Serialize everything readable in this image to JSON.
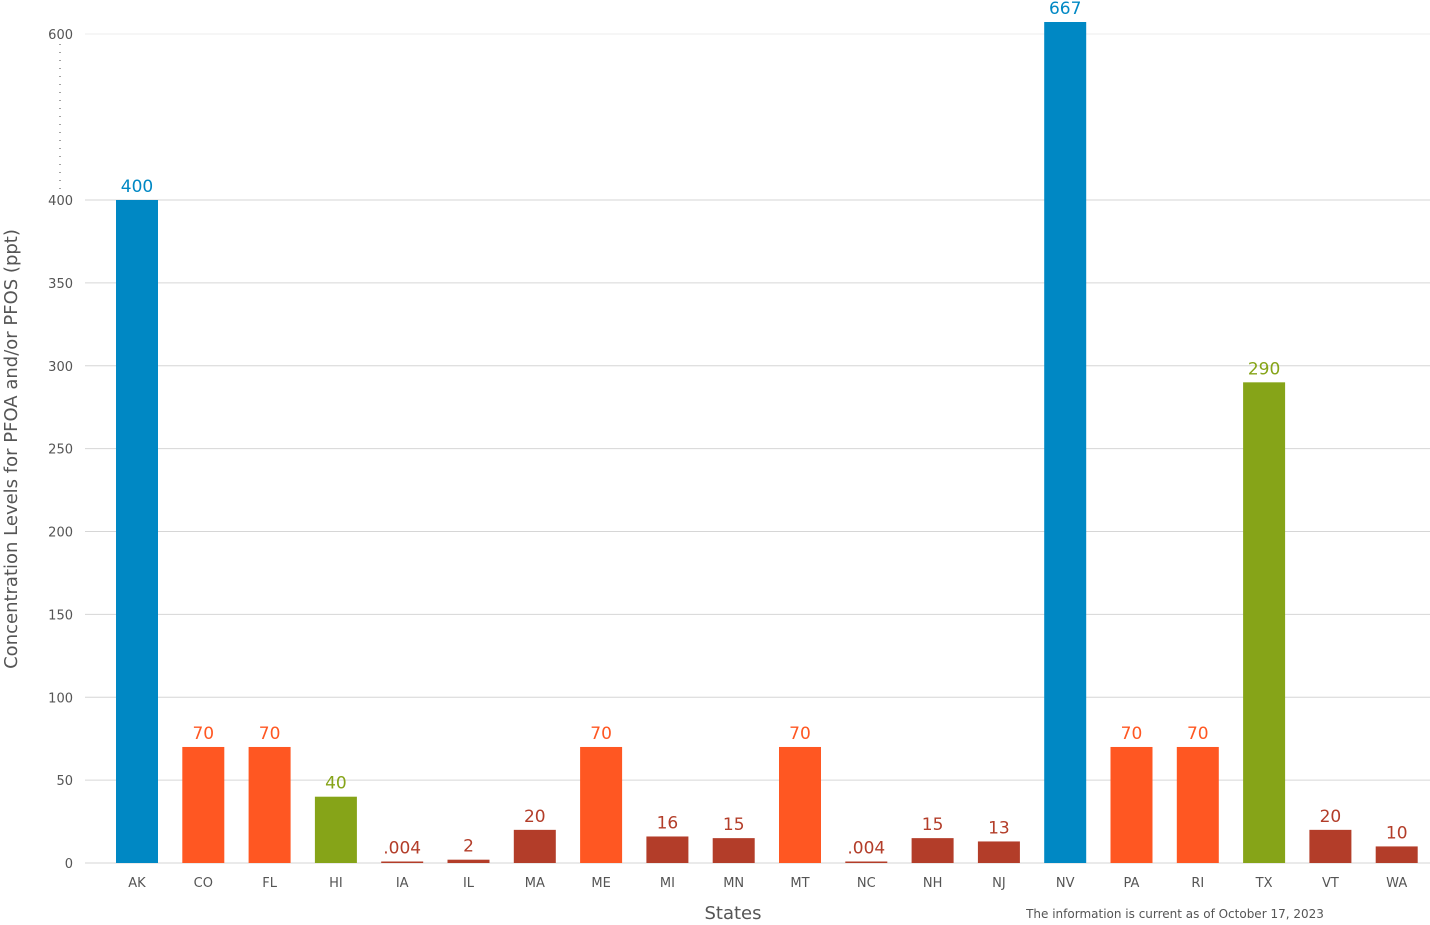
{
  "chart_data": {
    "type": "bar",
    "title": "",
    "xlabel": "States",
    "ylabel": "Concentration Levels for PFOA and/or PFOS (ppt)",
    "note": "The information is current as of October 17, 2023",
    "y_ticks": [
      0,
      50,
      100,
      150,
      200,
      250,
      300,
      350,
      400,
      600
    ],
    "y_axis_break": [
      400,
      600
    ],
    "grid": true,
    "categories": [
      "AK",
      "CO",
      "FL",
      "HI",
      "IA",
      "IL",
      "MA",
      "ME",
      "MI",
      "MN",
      "MT",
      "NC",
      "NH",
      "NJ",
      "NV",
      "PA",
      "RI",
      "TX",
      "VT",
      "WA"
    ],
    "values": [
      400,
      70,
      70,
      40,
      0.004,
      2,
      20,
      70,
      16,
      15,
      70,
      0.004,
      15,
      13,
      667,
      70,
      70,
      290,
      20,
      10
    ],
    "value_labels": [
      "400",
      "70",
      "70",
      "40",
      ".004",
      "2",
      "20",
      "70",
      "16",
      "15",
      "70",
      ".004",
      "15",
      "13",
      "667",
      "70",
      "70",
      "290",
      "20",
      "10"
    ],
    "colors": [
      "#0088c4",
      "#ff5722",
      "#ff5722",
      "#86a418",
      "#b33d29",
      "#b33d29",
      "#b33d29",
      "#ff5722",
      "#b33d29",
      "#b33d29",
      "#ff5722",
      "#b33d29",
      "#b33d29",
      "#b33d29",
      "#0088c4",
      "#ff5722",
      "#ff5722",
      "#86a418",
      "#b33d29",
      "#b33d29"
    ]
  }
}
